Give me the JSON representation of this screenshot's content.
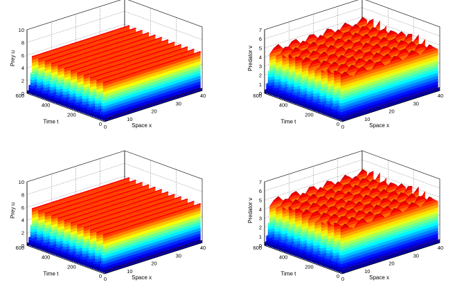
{
  "chart_data": [
    {
      "type": "surface3d",
      "title": "",
      "variable": "u",
      "xlabel": "Space x",
      "ylabel": "Time t",
      "zlabel": "Prey u",
      "x_range": [
        0,
        40
      ],
      "t_range": [
        0,
        600
      ],
      "z_range": [
        0,
        10
      ],
      "x_ticks": [
        "0",
        "10",
        "20",
        "30",
        "40"
      ],
      "t_ticks": [
        "0",
        "200",
        "400",
        "600"
      ],
      "z_ticks": [
        "0",
        "2",
        "4",
        "6",
        "8",
        "10"
      ],
      "surface": {
        "max": 7.0,
        "min": 0.4,
        "oscillations_in_t": 12,
        "spatial_waviness": 0.0
      },
      "colormap": "jet"
    },
    {
      "type": "surface3d",
      "title": "",
      "variable": "v",
      "xlabel": "Space x",
      "ylabel": "Time t",
      "zlabel": "Predator v",
      "x_range": [
        0,
        40
      ],
      "t_range": [
        0,
        600
      ],
      "z_range": [
        0,
        7
      ],
      "x_ticks": [
        "0",
        "10",
        "20",
        "30",
        "40"
      ],
      "t_ticks": [
        "0",
        "200",
        "400",
        "600"
      ],
      "z_ticks": [
        "0",
        "1",
        "2",
        "3",
        "4",
        "5",
        "6",
        "7"
      ],
      "surface": {
        "max": 5.6,
        "min": 0.4,
        "oscillations_in_t": 12,
        "spatial_waviness": 0.25
      },
      "colormap": "jet"
    },
    {
      "type": "surface3d",
      "title": "",
      "variable": "u",
      "xlabel": "Space x",
      "ylabel": "Time t",
      "zlabel": "Prey u",
      "x_range": [
        0,
        40
      ],
      "t_range": [
        0,
        600
      ],
      "z_range": [
        0,
        10
      ],
      "x_ticks": [
        "0",
        "10",
        "20",
        "30",
        "40"
      ],
      "t_ticks": [
        "0",
        "200",
        "400",
        "600"
      ],
      "z_ticks": [
        "0",
        "2",
        "4",
        "6",
        "8",
        "10"
      ],
      "surface": {
        "max": 7.0,
        "min": 0.4,
        "oscillations_in_t": 12,
        "spatial_waviness": 0.0
      },
      "colormap": "jet"
    },
    {
      "type": "surface3d",
      "title": "",
      "variable": "v",
      "xlabel": "Space x",
      "ylabel": "Time t",
      "zlabel": "Predator v",
      "x_range": [
        0,
        40
      ],
      "t_range": [
        0,
        600
      ],
      "z_range": [
        0,
        7
      ],
      "x_ticks": [
        "0",
        "10",
        "20",
        "30",
        "40"
      ],
      "t_ticks": [
        "0",
        "200",
        "400",
        "600"
      ],
      "z_ticks": [
        "0",
        "1",
        "2",
        "3",
        "4",
        "5",
        "6",
        "7"
      ],
      "surface": {
        "max": 5.6,
        "min": 0.4,
        "oscillations_in_t": 12,
        "spatial_waviness": 0.25
      },
      "colormap": "jet"
    }
  ]
}
